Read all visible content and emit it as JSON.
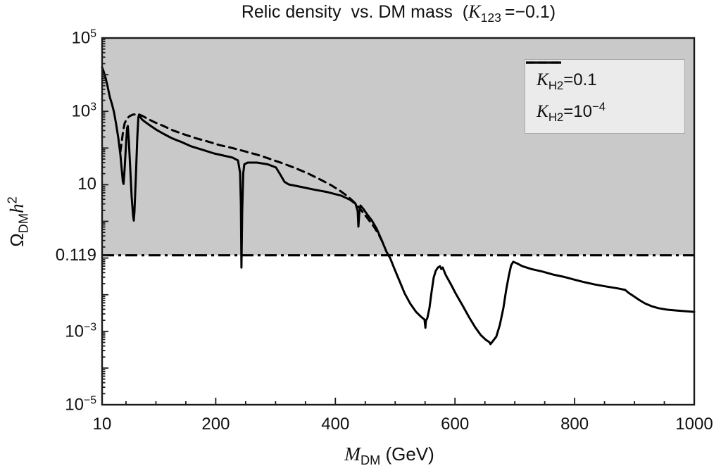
{
  "title": {
    "prefix": "Relic density  vs. DM mass  (",
    "kappa": "K",
    "kappa_sub": "123",
    "suffix": " =−0.1)"
  },
  "axis_labels": {
    "x_var": "M",
    "x_sub": "DM",
    "x_unit": " (GeV)",
    "y_omega": "Ω",
    "y_sub": "DM",
    "y_h": "h",
    "y_exp": "2"
  },
  "legend": {
    "entries": [
      {
        "style": "solid",
        "kappa": "K",
        "sub": "H2",
        "eq": "=0.1",
        "sup": ""
      },
      {
        "style": "dashed",
        "kappa": "K",
        "sub": "H2",
        "eq": "=10",
        "sup": "−4"
      }
    ]
  },
  "colors": {
    "curve": "#000000",
    "frame": "#1a1a1a",
    "excluded_region": "#c9c9c9",
    "legend_bg": "#ebebeb",
    "background": "#ffffff"
  },
  "chart_data": {
    "type": "line",
    "title": "Relic density vs. DM mass (K123 = -0.1)",
    "xlabel": "M_DM (GeV)",
    "ylabel": "Omega_DM h^2",
    "x_scale": "linear",
    "y_scale": "log",
    "xlim": [
      10,
      1000
    ],
    "ylim": [
      1e-05,
      100000.0
    ],
    "grid": false,
    "legend_position": "top-right",
    "shaded_region": {
      "from_y": 0.119,
      "to_y": 100000.0,
      "meaning": "excluded / overabundance region"
    },
    "relic_line": {
      "value": 0.119,
      "label": "0.119",
      "dash_style": "dash-dot"
    },
    "x_major_ticks": [
      200,
      400,
      600,
      800,
      1000
    ],
    "x_minor_tick_step": 50,
    "x_tick_labels": [
      {
        "text": "10",
        "value": 10
      },
      {
        "text": "200",
        "value": 200
      },
      {
        "text": "400",
        "value": 400
      },
      {
        "text": "600",
        "value": 600
      },
      {
        "text": "800",
        "value": 800
      },
      {
        "text": "1000",
        "value": 1000
      }
    ],
    "y_tick_labels": [
      {
        "base": "10",
        "exp": "5",
        "value": 100000
      },
      {
        "base": "10",
        "exp": "3",
        "value": 1000
      },
      {
        "base": "10",
        "exp": "",
        "value": 10
      },
      {
        "base": "0.119",
        "exp": "",
        "value": 0.119
      },
      {
        "base": "10",
        "exp": "−3",
        "value": 0.001
      },
      {
        "base": "10",
        "exp": "−5",
        "value": 1e-05
      }
    ],
    "series": [
      {
        "name": "K_H2=0.1",
        "style": "solid",
        "points": [
          [
            10,
            16000
          ],
          [
            12.4,
            12600
          ],
          [
            15.9,
            8100
          ],
          [
            19.4,
            4600
          ],
          [
            22.9,
            2450
          ],
          [
            26.5,
            1580
          ],
          [
            30,
            930
          ],
          [
            33.5,
            440
          ],
          [
            37.1,
            190
          ],
          [
            40.6,
            65
          ],
          [
            43,
            24.5
          ],
          [
            44.7,
            12
          ],
          [
            45.9,
            10.5
          ],
          [
            47.7,
            27
          ],
          [
            50,
            126
          ],
          [
            51.8,
            350
          ],
          [
            53,
            400
          ],
          [
            54.7,
            155
          ],
          [
            57.1,
            27
          ],
          [
            59.4,
            4.6
          ],
          [
            61.8,
            1.45
          ],
          [
            63,
            1.05
          ],
          [
            64.1,
            1.9
          ],
          [
            66.5,
            17.4
          ],
          [
            68.8,
            195
          ],
          [
            70.6,
            680
          ],
          [
            71.8,
            815
          ],
          [
            73.5,
            710
          ],
          [
            77.1,
            590
          ],
          [
            83,
            500
          ],
          [
            91.2,
            400
          ],
          [
            100.6,
            316
          ],
          [
            112.4,
            245
          ],
          [
            126.5,
            186
          ],
          [
            143,
            145
          ],
          [
            159.5,
            110
          ],
          [
            178.3,
            89
          ],
          [
            197.2,
            71
          ],
          [
            213.6,
            62
          ],
          [
            227.8,
            55
          ],
          [
            237.2,
            46
          ],
          [
            240.7,
            21
          ],
          [
            242,
            3
          ],
          [
            243,
            0.055
          ],
          [
            244.2,
            1.9
          ],
          [
            246,
            21
          ],
          [
            247.8,
            36
          ],
          [
            253.6,
            40
          ],
          [
            268.9,
            40
          ],
          [
            286.6,
            36
          ],
          [
            300.7,
            29.5
          ],
          [
            307.8,
            19
          ],
          [
            314.9,
            12
          ],
          [
            321.9,
            10.2
          ],
          [
            339.6,
            8.9
          ],
          [
            363.1,
            7.4
          ],
          [
            386.7,
            6.3
          ],
          [
            410.2,
            5.0
          ],
          [
            424.3,
            3.9
          ],
          [
            433.8,
            3.0
          ],
          [
            437.3,
            1.9
          ],
          [
            438.5,
            0.72
          ],
          [
            440.2,
            1.9
          ],
          [
            442,
            2.7
          ],
          [
            446.7,
            2.2
          ],
          [
            453.8,
            1.5
          ],
          [
            460.8,
            1.07
          ],
          [
            469.1,
            0.63
          ],
          [
            477.3,
            0.31
          ],
          [
            485.5,
            0.148
          ],
          [
            491.4,
            0.102
          ],
          [
            498.5,
            0.052
          ],
          [
            506.7,
            0.025
          ],
          [
            516.1,
            0.0107
          ],
          [
            525.5,
            0.0056
          ],
          [
            534.9,
            0.0034
          ],
          [
            543.2,
            0.0025
          ],
          [
            549,
            0.0021
          ],
          [
            550.5,
            0.00126
          ],
          [
            551.4,
            0.00195
          ],
          [
            553.7,
            0.0023
          ],
          [
            557.3,
            0.0043
          ],
          [
            560.8,
            0.0117
          ],
          [
            564.3,
            0.029
          ],
          [
            567.9,
            0.045
          ],
          [
            571.4,
            0.055
          ],
          [
            574.9,
            0.06
          ],
          [
            577.2,
            0.05
          ],
          [
            579.5,
            0.055
          ],
          [
            584.3,
            0.035
          ],
          [
            592.6,
            0.02
          ],
          [
            602,
            0.0102
          ],
          [
            612.6,
            0.0051
          ],
          [
            623.2,
            0.0025
          ],
          [
            633.8,
            0.00129
          ],
          [
            643.2,
            0.00079
          ],
          [
            651.4,
            0.00059
          ],
          [
            657.3,
            0.00051
          ],
          [
            659.5,
            0.00045
          ],
          [
            663.2,
            0.00054
          ],
          [
            669.1,
            0.00072
          ],
          [
            675,
            0.0015
          ],
          [
            680.9,
            0.0043
          ],
          [
            685.6,
            0.0135
          ],
          [
            690.3,
            0.035
          ],
          [
            693.8,
            0.063
          ],
          [
            697.3,
            0.079
          ],
          [
            703.2,
            0.072
          ],
          [
            712.6,
            0.06
          ],
          [
            727.9,
            0.05
          ],
          [
            745.6,
            0.043
          ],
          [
            765.6,
            0.035
          ],
          [
            780.9,
            0.031
          ],
          [
            798.6,
            0.026
          ],
          [
            816.2,
            0.022
          ],
          [
            833.9,
            0.019
          ],
          [
            853.9,
            0.0166
          ],
          [
            872.7,
            0.0148
          ],
          [
            884.5,
            0.0135
          ],
          [
            890.4,
            0.0112
          ],
          [
            898.6,
            0.0091
          ],
          [
            908,
            0.0072
          ],
          [
            917.5,
            0.0058
          ],
          [
            928,
            0.0049
          ],
          [
            939.8,
            0.0043
          ],
          [
            955.1,
            0.0039
          ],
          [
            971.6,
            0.0037
          ],
          [
            1000,
            0.0034
          ]
        ]
      },
      {
        "name": "K_H2=10^-4",
        "style": "dashed",
        "points": [
          [
            40.6,
            79
          ],
          [
            43,
            155
          ],
          [
            45.3,
            300
          ],
          [
            47.7,
            470
          ],
          [
            51.2,
            620
          ],
          [
            55.9,
            740
          ],
          [
            61.8,
            815
          ],
          [
            67.7,
            830
          ],
          [
            72.4,
            815
          ],
          [
            78.3,
            740
          ],
          [
            86.5,
            620
          ],
          [
            98.3,
            500
          ],
          [
            112.4,
            400
          ],
          [
            128.9,
            300
          ],
          [
            147.7,
            234
          ],
          [
            166.5,
            186
          ],
          [
            186.6,
            151
          ],
          [
            206.6,
            120
          ],
          [
            227.8,
            100
          ],
          [
            249,
            81
          ],
          [
            270.1,
            65
          ],
          [
            291.3,
            50
          ],
          [
            312.5,
            38
          ],
          [
            333.7,
            28
          ],
          [
            354.9,
            20
          ],
          [
            374.9,
            13.8
          ],
          [
            392.6,
            9.8
          ],
          [
            407.9,
            6.8
          ],
          [
            420.8,
            4.8
          ],
          [
            432.6,
            3.2
          ],
          [
            442,
            2.14
          ],
          [
            450.2,
            1.45
          ],
          [
            457.3,
            1.02
          ],
          [
            464.4,
            0.72
          ],
          [
            471.4,
            0.47
          ],
          [
            478.5,
            0.28
          ]
        ]
      }
    ]
  }
}
